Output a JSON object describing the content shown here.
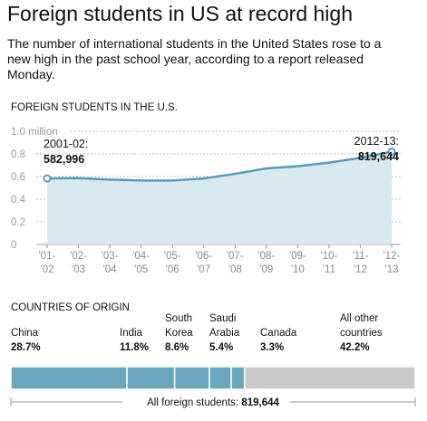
{
  "header": {
    "title": "Foreign students in US at record high",
    "subtitle": "The number of international students in the United States rose to a new high in the past school year, according to a report released Monday."
  },
  "chart_data": [
    {
      "type": "area",
      "title": "FOREIGN STUDENTS IN THE U.S.",
      "categories": [
        [
          "'01-",
          "'02"
        ],
        [
          "'02-",
          "'03"
        ],
        [
          "'03-",
          "'04"
        ],
        [
          "'04-",
          "'05"
        ],
        [
          "'05-",
          "'06"
        ],
        [
          "'06-",
          "'07"
        ],
        [
          "'07-",
          "'08"
        ],
        [
          "'08-",
          "'09"
        ],
        [
          "'09-",
          "'10"
        ],
        [
          "'10-",
          "'11"
        ],
        [
          "'11-",
          "'12"
        ],
        [
          "'12-",
          "'13"
        ]
      ],
      "series": [
        {
          "name": null,
          "color": "#5b9ab6",
          "values": [
            0.582996,
            0.586,
            0.573,
            0.565,
            0.565,
            0.583,
            0.624,
            0.672,
            0.691,
            0.723,
            0.765,
            0.819644
          ],
          "value_labels": [
            "582,996",
            null,
            null,
            null,
            null,
            null,
            null,
            null,
            null,
            null,
            null,
            "819,644"
          ]
        }
      ],
      "fill": "#d9e9f1",
      "annotations": [
        "2001-02:",
        "2012-13:"
      ],
      "ylim": [
        0,
        1
      ],
      "yticks": [
        0,
        0.2,
        0.4,
        0.6,
        0.8,
        {
          "value": 1,
          "label": "1.0 million"
        }
      ],
      "grid": true
    },
    {
      "type": "stacked-bar",
      "title": "COUNTRIES OF ORIGIN",
      "categories": [
        [
          "China"
        ],
        [
          "India"
        ],
        [
          "South",
          "Korea"
        ],
        [
          "Saudi",
          "Arabia"
        ],
        [
          "Canada"
        ],
        [
          "All other",
          "countries"
        ]
      ],
      "values": [
        28.7,
        11.8,
        8.6,
        5.4,
        3.3,
        42.2
      ],
      "value_labels": [
        "28.7%",
        "11.8%",
        "8.6%",
        "5.4%",
        "3.3%",
        "42.2%"
      ],
      "colors": [
        "#6ba6bf",
        "#6ba6bf",
        "#6ba6bf",
        "#6ba6bf",
        "#6ba6bf",
        "#c9c9c9"
      ],
      "total": {
        "text": "All foreign students:",
        "value": 819644,
        "label": "819,644"
      }
    }
  ]
}
